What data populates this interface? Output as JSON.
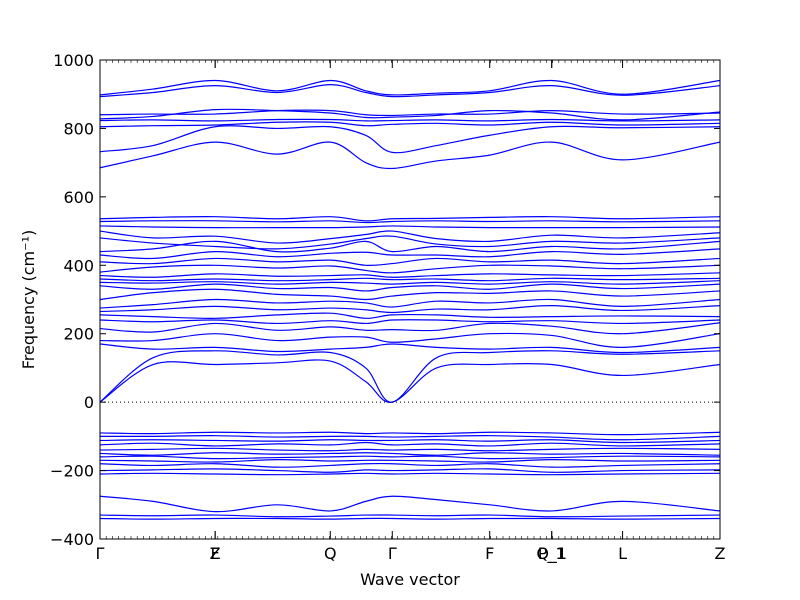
{
  "chart_data": {
    "type": "line",
    "title": "",
    "xlabel": "Wave vector",
    "ylabel": "Frequency (cm⁻¹)",
    "ylim": [
      -400,
      1000
    ],
    "yticks": [
      -400,
      -200,
      0,
      200,
      400,
      600,
      800,
      1000
    ],
    "xlim": [
      0,
      3.5
    ],
    "high_symmetry_points": [
      {
        "label": "Γ",
        "x": 0.0
      },
      {
        "label": "F",
        "x": 0.65
      },
      {
        "label": "Z",
        "x": 0.65
      },
      {
        "label": "Q",
        "x": 1.3
      },
      {
        "label": "Γ",
        "x": 1.65
      },
      {
        "label": "F",
        "x": 2.2
      },
      {
        "label": "P_1",
        "x": 2.55
      },
      {
        "label": "Q_1",
        "x": 2.55
      },
      {
        "label": "L",
        "x": 2.95
      },
      {
        "label": "Z",
        "x": 3.5
      }
    ],
    "zero_line": true,
    "grid": false,
    "line_color": "#0000ff",
    "x": [
      0.0,
      0.3,
      0.65,
      1.0,
      1.3,
      1.5,
      1.65,
      1.9,
      2.2,
      2.55,
      2.95,
      3.5
    ],
    "series": [
      {
        "values": [
          898,
          915,
          940,
          910,
          940,
          910,
          898,
          903,
          910,
          940,
          900,
          940
        ]
      },
      {
        "values": [
          893,
          905,
          925,
          905,
          928,
          905,
          893,
          898,
          905,
          925,
          897,
          925
        ]
      },
      {
        "values": [
          840,
          842,
          842,
          852,
          852,
          840,
          838,
          842,
          842,
          852,
          842,
          845
        ]
      },
      {
        "values": [
          828,
          835,
          855,
          852,
          845,
          832,
          833,
          838,
          852,
          845,
          825,
          848
        ]
      },
      {
        "values": [
          823,
          825,
          822,
          826,
          826,
          822,
          823,
          825,
          822,
          826,
          822,
          825
        ]
      },
      {
        "values": [
          805,
          808,
          810,
          818,
          818,
          808,
          812,
          815,
          810,
          818,
          810,
          815
        ]
      },
      {
        "values": [
          732,
          750,
          805,
          800,
          805,
          780,
          730,
          750,
          780,
          805,
          802,
          805
        ]
      },
      {
        "values": [
          685,
          720,
          760,
          725,
          760,
          700,
          683,
          705,
          722,
          760,
          708,
          760
        ]
      },
      {
        "values": [
          536,
          540,
          542,
          536,
          542,
          530,
          536,
          537,
          540,
          542,
          536,
          542
        ]
      },
      {
        "values": [
          528,
          530,
          530,
          527,
          530,
          525,
          528,
          530,
          528,
          530,
          527,
          530
        ]
      },
      {
        "values": [
          515,
          512,
          510,
          510,
          510,
          512,
          515,
          512,
          510,
          510,
          510,
          512
        ]
      },
      {
        "values": [
          500,
          480,
          485,
          465,
          478,
          490,
          500,
          478,
          470,
          488,
          480,
          495
        ]
      },
      {
        "values": [
          480,
          465,
          455,
          448,
          462,
          478,
          485,
          462,
          455,
          470,
          465,
          480
        ]
      },
      {
        "values": [
          440,
          448,
          470,
          440,
          450,
          470,
          440,
          455,
          440,
          455,
          448,
          470
        ]
      },
      {
        "values": [
          430,
          420,
          440,
          425,
          435,
          438,
          430,
          430,
          425,
          440,
          432,
          448
        ]
      },
      {
        "values": [
          410,
          405,
          420,
          410,
          415,
          400,
          405,
          420,
          410,
          415,
          405,
          420
        ]
      },
      {
        "values": [
          380,
          395,
          400,
          392,
          398,
          385,
          378,
          390,
          400,
          398,
          390,
          400
        ]
      },
      {
        "values": [
          370,
          365,
          375,
          368,
          370,
          372,
          365,
          370,
          375,
          372,
          370,
          378
        ]
      },
      {
        "values": [
          360,
          355,
          360,
          355,
          358,
          362,
          358,
          360,
          355,
          362,
          358,
          362
        ]
      },
      {
        "values": [
          350,
          348,
          352,
          345,
          350,
          348,
          345,
          350,
          345,
          352,
          345,
          355
        ]
      },
      {
        "values": [
          340,
          330,
          345,
          332,
          335,
          325,
          335,
          340,
          330,
          345,
          332,
          345
        ]
      },
      {
        "values": [
          300,
          320,
          330,
          315,
          310,
          300,
          310,
          320,
          318,
          325,
          310,
          325
        ]
      },
      {
        "values": [
          275,
          285,
          300,
          290,
          295,
          290,
          278,
          295,
          290,
          300,
          280,
          300
        ]
      },
      {
        "values": [
          265,
          270,
          280,
          270,
          275,
          270,
          262,
          272,
          270,
          282,
          268,
          282
        ]
      },
      {
        "values": [
          255,
          250,
          245,
          255,
          260,
          245,
          255,
          255,
          248,
          250,
          252,
          250
        ]
      },
      {
        "values": [
          240,
          235,
          240,
          230,
          238,
          230,
          240,
          240,
          235,
          238,
          230,
          240
        ]
      },
      {
        "values": [
          215,
          205,
          230,
          210,
          220,
          210,
          212,
          210,
          230,
          222,
          200,
          232
        ]
      },
      {
        "values": [
          180,
          180,
          200,
          180,
          190,
          190,
          175,
          185,
          200,
          195,
          160,
          200
        ]
      },
      {
        "values": [
          170,
          155,
          160,
          148,
          155,
          160,
          170,
          160,
          155,
          160,
          145,
          160
        ]
      },
      {
        "values": [
          0,
          130,
          150,
          138,
          145,
          100,
          0,
          130,
          145,
          150,
          140,
          150
        ]
      },
      {
        "values": [
          0,
          110,
          110,
          115,
          120,
          60,
          0,
          100,
          110,
          110,
          78,
          110
        ]
      },
      {
        "values": [
          -90,
          -92,
          -88,
          -90,
          -88,
          -92,
          -90,
          -92,
          -88,
          -90,
          -95,
          -88
        ]
      },
      {
        "values": [
          -100,
          -100,
          -98,
          -102,
          -100,
          -100,
          -102,
          -100,
          -98,
          -102,
          -110,
          -100
        ]
      },
      {
        "values": [
          -112,
          -110,
          -112,
          -114,
          -110,
          -112,
          -112,
          -110,
          -114,
          -110,
          -118,
          -112
        ]
      },
      {
        "values": [
          -125,
          -120,
          -128,
          -122,
          -125,
          -118,
          -125,
          -122,
          -128,
          -120,
          -128,
          -122
        ]
      },
      {
        "values": [
          -140,
          -138,
          -135,
          -140,
          -142,
          -138,
          -140,
          -138,
          -142,
          -138,
          -135,
          -138
        ]
      },
      {
        "values": [
          -150,
          -155,
          -148,
          -152,
          -150,
          -148,
          -150,
          -155,
          -148,
          -152,
          -150,
          -155
        ]
      },
      {
        "values": [
          -160,
          -158,
          -165,
          -162,
          -160,
          -158,
          -160,
          -158,
          -165,
          -162,
          -158,
          -160
        ]
      },
      {
        "values": [
          -170,
          -172,
          -175,
          -168,
          -172,
          -170,
          -170,
          -172,
          -175,
          -168,
          -172,
          -170
        ]
      },
      {
        "values": [
          -180,
          -185,
          -180,
          -190,
          -185,
          -180,
          -180,
          -185,
          -180,
          -190,
          -185,
          -180
        ]
      },
      {
        "values": [
          -200,
          -198,
          -195,
          -200,
          -205,
          -198,
          -200,
          -198,
          -195,
          -205,
          -200,
          -198
        ]
      },
      {
        "values": [
          -210,
          -208,
          -210,
          -212,
          -210,
          -208,
          -210,
          -208,
          -210,
          -212,
          -210,
          -208
        ]
      },
      {
        "values": [
          -275,
          -290,
          -320,
          -300,
          -318,
          -290,
          -275,
          -285,
          -300,
          -318,
          -290,
          -318
        ]
      },
      {
        "values": [
          -330,
          -332,
          -330,
          -335,
          -333,
          -330,
          -330,
          -332,
          -330,
          -335,
          -333,
          -330
        ]
      },
      {
        "values": [
          -340,
          -342,
          -340,
          -340,
          -342,
          -340,
          -340,
          -342,
          -340,
          -340,
          -342,
          -340
        ]
      }
    ]
  }
}
